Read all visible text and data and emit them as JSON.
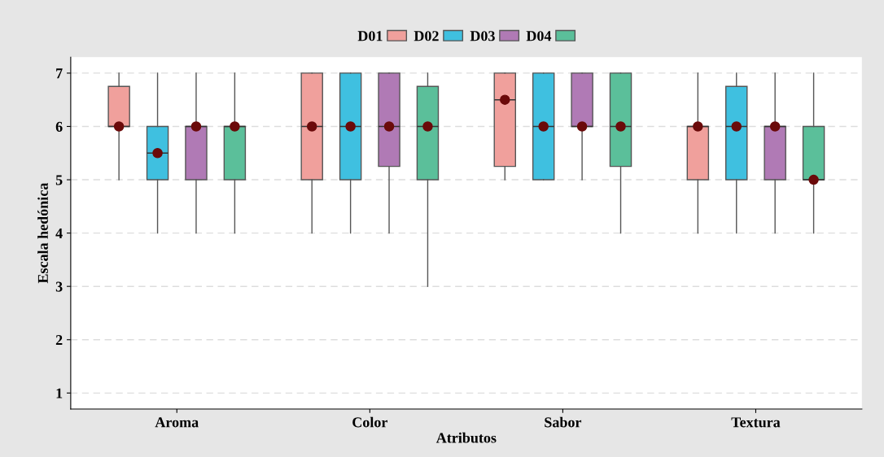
{
  "chart_data": {
    "type": "box",
    "xlabel": "Atributos",
    "ylabel": "Escala hedónica",
    "categories": [
      "Aroma",
      "Color",
      "Sabor",
      "Textura"
    ],
    "ylim": [
      0.7,
      7.3
    ],
    "yticks": [
      1,
      2,
      3,
      4,
      5,
      6,
      7
    ],
    "grid": "y",
    "legend": "top",
    "marker": "circle",
    "series": [
      {
        "name": "D01",
        "color": "#f0a09c",
        "boxes": [
          {
            "low": 5,
            "q1": 6,
            "median": 6,
            "q3": 6.75,
            "high": 7,
            "mean": 6
          },
          {
            "low": 4,
            "q1": 5,
            "median": 6,
            "q3": 7,
            "high": 7,
            "mean": 6
          },
          {
            "low": 5,
            "q1": 5.25,
            "median": 6.5,
            "q3": 7,
            "high": 7,
            "mean": 6.5
          },
          {
            "low": 4,
            "q1": 5,
            "median": 6,
            "q3": 6,
            "high": 7,
            "mean": 6
          }
        ]
      },
      {
        "name": "D02",
        "color": "#3fc0e0",
        "boxes": [
          {
            "low": 4,
            "q1": 5,
            "median": 5.5,
            "q3": 6,
            "high": 7,
            "mean": 5.5
          },
          {
            "low": 4,
            "q1": 5,
            "median": 6,
            "q3": 7,
            "high": 7,
            "mean": 6
          },
          {
            "low": 5,
            "q1": 5,
            "median": 6,
            "q3": 7,
            "high": 7,
            "mean": 6
          },
          {
            "low": 4,
            "q1": 5,
            "median": 6,
            "q3": 6.75,
            "high": 7,
            "mean": 6
          }
        ]
      },
      {
        "name": "D03",
        "color": "#b07ab5",
        "boxes": [
          {
            "low": 4,
            "q1": 5,
            "median": 6,
            "q3": 6,
            "high": 7,
            "mean": 6
          },
          {
            "low": 4,
            "q1": 5.25,
            "median": 6,
            "q3": 7,
            "high": 7,
            "mean": 6
          },
          {
            "low": 5,
            "q1": 6,
            "median": 6,
            "q3": 7,
            "high": 7,
            "mean": 6
          },
          {
            "low": 4,
            "q1": 5,
            "median": 6,
            "q3": 6,
            "high": 7,
            "mean": 6
          }
        ]
      },
      {
        "name": "D04",
        "color": "#5bbf9a",
        "boxes": [
          {
            "low": 4,
            "q1": 5,
            "median": 6,
            "q3": 6,
            "high": 7,
            "mean": 6
          },
          {
            "low": 3,
            "q1": 5,
            "median": 6,
            "q3": 6.75,
            "high": 7,
            "mean": 6
          },
          {
            "low": 4,
            "q1": 5.25,
            "median": 6,
            "q3": 7,
            "high": 7,
            "mean": 6
          },
          {
            "low": 4,
            "q1": 5,
            "median": 5,
            "q3": 6,
            "high": 7,
            "mean": 5
          }
        ]
      }
    ]
  }
}
